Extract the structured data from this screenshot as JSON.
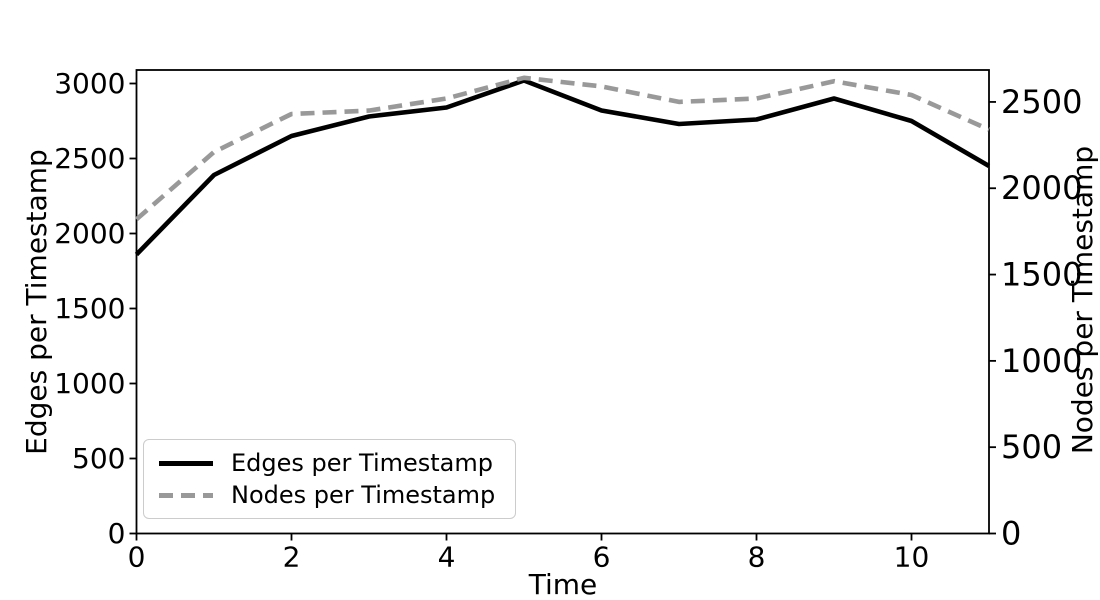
{
  "figure": {
    "background": "#ffffff"
  },
  "chart_data": {
    "type": "line",
    "title": "",
    "xlabel": "Time",
    "ylabel_left": "Edges per Timestamp",
    "ylabel_right": "Nodes per Timestamp",
    "x": [
      0,
      1,
      2,
      3,
      4,
      5,
      6,
      7,
      8,
      9,
      10,
      11
    ],
    "series": [
      {
        "name": "Edges per Timestamp",
        "axis": "left",
        "color": "#000000",
        "linestyle": "solid",
        "linewidth": 4.6,
        "values": [
          1860,
          2390,
          2650,
          2780,
          2840,
          3020,
          2820,
          2730,
          2760,
          2900,
          2750,
          2450
        ]
      },
      {
        "name": "Nodes per Timestamp",
        "axis": "right",
        "color": "#999999",
        "linestyle": "dashed",
        "linewidth": 4.6,
        "values": [
          1820,
          2210,
          2430,
          2450,
          2520,
          2640,
          2590,
          2500,
          2520,
          2620,
          2540,
          2340
        ]
      }
    ],
    "xlim": [
      0,
      11
    ],
    "ylim_left": [
      0,
      3090
    ],
    "ylim_right": [
      0,
      2685
    ],
    "x_ticks": [
      0,
      2,
      4,
      6,
      8,
      10
    ],
    "y_ticks_left": [
      0,
      500,
      1000,
      1500,
      2000,
      2500,
      3000
    ],
    "y_ticks_right": [
      0,
      500,
      1000,
      1500,
      2000,
      2500
    ],
    "grid": false,
    "legend_position": "lower left"
  },
  "legend": {
    "entries": [
      "Edges per Timestamp",
      "Nodes per Timestamp"
    ]
  }
}
